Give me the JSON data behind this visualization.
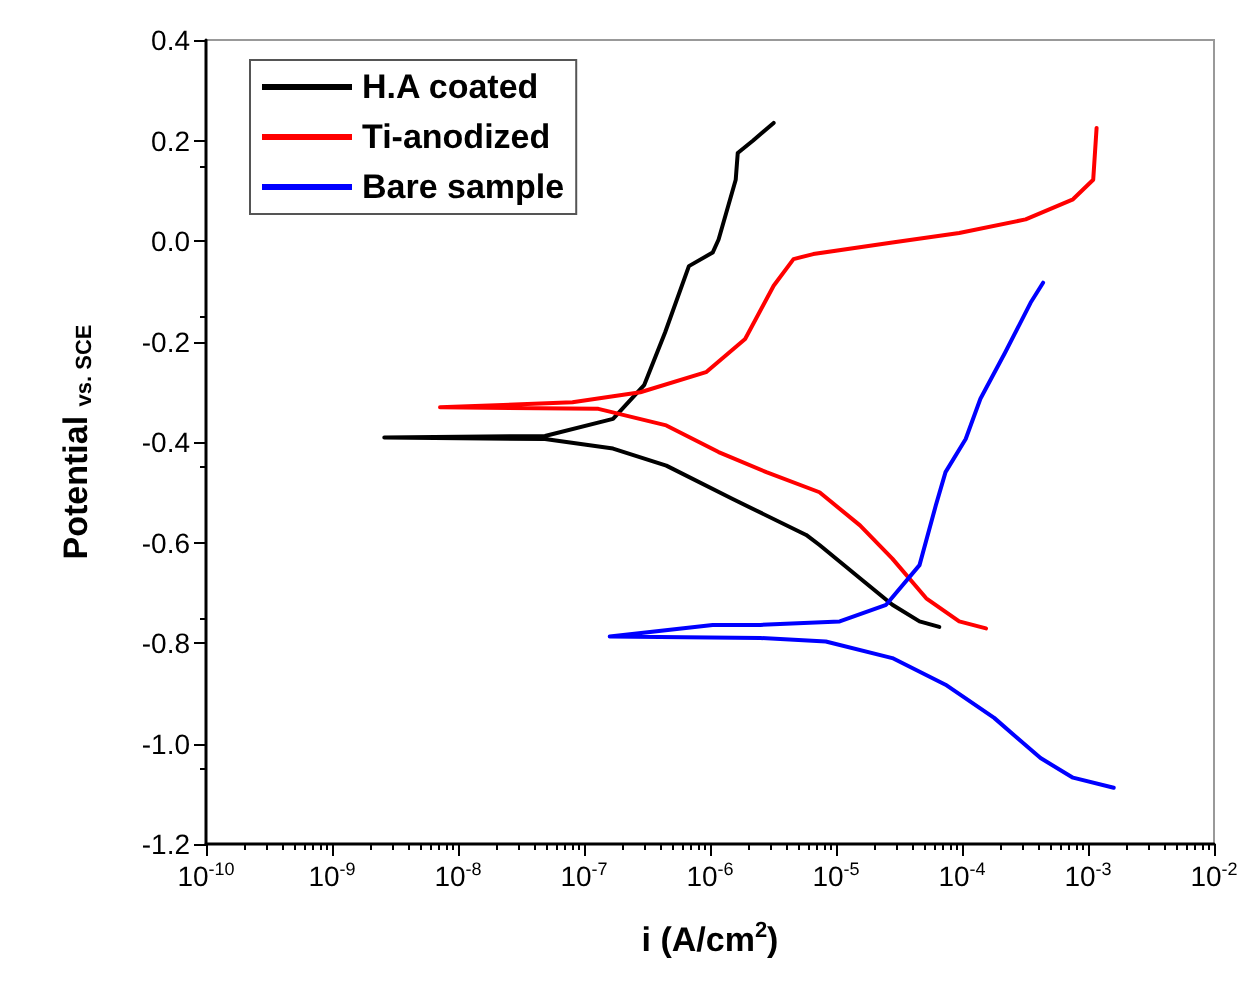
{
  "chart_data": {
    "type": "line",
    "xlabel": "i (A/cm$^{2}$)",
    "ylabel": "Potential $_{vs. SCE}$",
    "log": "x",
    "xlim": [
      1e-10,
      0.01
    ],
    "xticks": [
      {
        "value": 1e-10,
        "label": "10$^{-10}$"
      },
      {
        "value": 1e-09,
        "label": "10$^{-9}$"
      },
      {
        "value": 1e-08,
        "label": "10$^{-8}$"
      },
      {
        "value": 1e-07,
        "label": "10$^{-7}$"
      },
      {
        "value": 1e-06,
        "label": "10$^{-6}$"
      },
      {
        "value": 1e-05,
        "label": "10$^{-5}$"
      },
      {
        "value": 0.0001,
        "label": "10$^{-4}$"
      },
      {
        "value": 0.001,
        "label": "10$^{-3}$"
      },
      {
        "value": 0.01,
        "label": "10$^{-2}$"
      }
    ],
    "ylim": [
      -1.2,
      0.4
    ],
    "yticks": [
      {
        "value": -1.2,
        "label": "-1.2"
      },
      {
        "value": -1.0,
        "label": "-1.0"
      },
      {
        "value": -0.8,
        "label": "-0.8"
      },
      {
        "value": -0.6,
        "label": "-0.6"
      },
      {
        "value": -0.4,
        "label": "-0.4"
      },
      {
        "value": -0.2,
        "label": "-0.2"
      },
      {
        "value": 0,
        "label": "0.0"
      },
      {
        "value": 0.2,
        "label": "0.2"
      },
      {
        "value": 0.4,
        "label": "0.4"
      }
    ],
    "grid": false,
    "legend": "top left",
    "series": [
      {
        "name": "H.A coated",
        "color": "#000000",
        "x": [
          6.6e-05,
          4.6e-05,
          2.8e-05,
          1.55e-05,
          7.4e-06,
          5.8e-06,
          1.5e-06,
          4.5e-07,
          1.7e-07,
          4.9e-08,
          2.6e-09,
          4.9e-08,
          1.7e-07,
          3e-07,
          4.4e-07,
          6.8e-07,
          1.05e-06,
          1.17e-06,
          1.6e-06,
          1.66e-06,
          2.2e-06,
          3.2e-06
        ],
        "values": [
          -0.768,
          -0.757,
          -0.724,
          -0.671,
          -0.605,
          -0.585,
          -0.513,
          -0.447,
          -0.413,
          -0.394,
          -0.391,
          -0.388,
          -0.354,
          -0.287,
          -0.182,
          -0.05,
          -0.023,
          0.003,
          0.122,
          0.175,
          0.2,
          0.235
        ]
      },
      {
        "name": "Ti-anodized",
        "color": "#ff0000",
        "x": [
          0.000155,
          9.5e-05,
          5.2e-05,
          2.8e-05,
          1.55e-05,
          7.4e-06,
          2.8e-06,
          1.17e-06,
          4.5e-07,
          1.3e-07,
          7.2e-09,
          8.1e-08,
          2.8e-07,
          9.3e-07,
          1.9e-06,
          3.2e-06,
          4.6e-06,
          6.6e-06,
          2.8e-05,
          9.5e-05,
          0.00032,
          0.00076,
          0.0011,
          0.00117
        ],
        "values": [
          -0.771,
          -0.757,
          -0.711,
          -0.632,
          -0.566,
          -0.5,
          -0.46,
          -0.42,
          -0.367,
          -0.334,
          -0.331,
          -0.321,
          -0.301,
          -0.261,
          -0.195,
          -0.089,
          -0.036,
          -0.026,
          -0.003,
          0.016,
          0.043,
          0.083,
          0.122,
          0.225
        ]
      },
      {
        "name": "Bare sample",
        "color": "#0000ff",
        "x": [
          0.0016,
          0.00076,
          0.00042,
          0.00018,
          7.4e-05,
          2.8e-05,
          8.3e-06,
          2.5e-06,
          1.6e-07,
          1.05e-06,
          2.5e-06,
          1.07e-05,
          2.5e-05,
          4.6e-05,
          6.2e-05,
          7.4e-05,
          0.000107,
          0.00014,
          0.00022,
          0.0003,
          0.00035,
          0.00044
        ],
        "values": [
          -1.088,
          -1.068,
          -1.029,
          -0.949,
          -0.883,
          -0.83,
          -0.797,
          -0.79,
          -0.787,
          -0.764,
          -0.764,
          -0.757,
          -0.724,
          -0.645,
          -0.526,
          -0.46,
          -0.394,
          -0.314,
          -0.222,
          -0.156,
          -0.123,
          -0.083
        ]
      }
    ]
  }
}
